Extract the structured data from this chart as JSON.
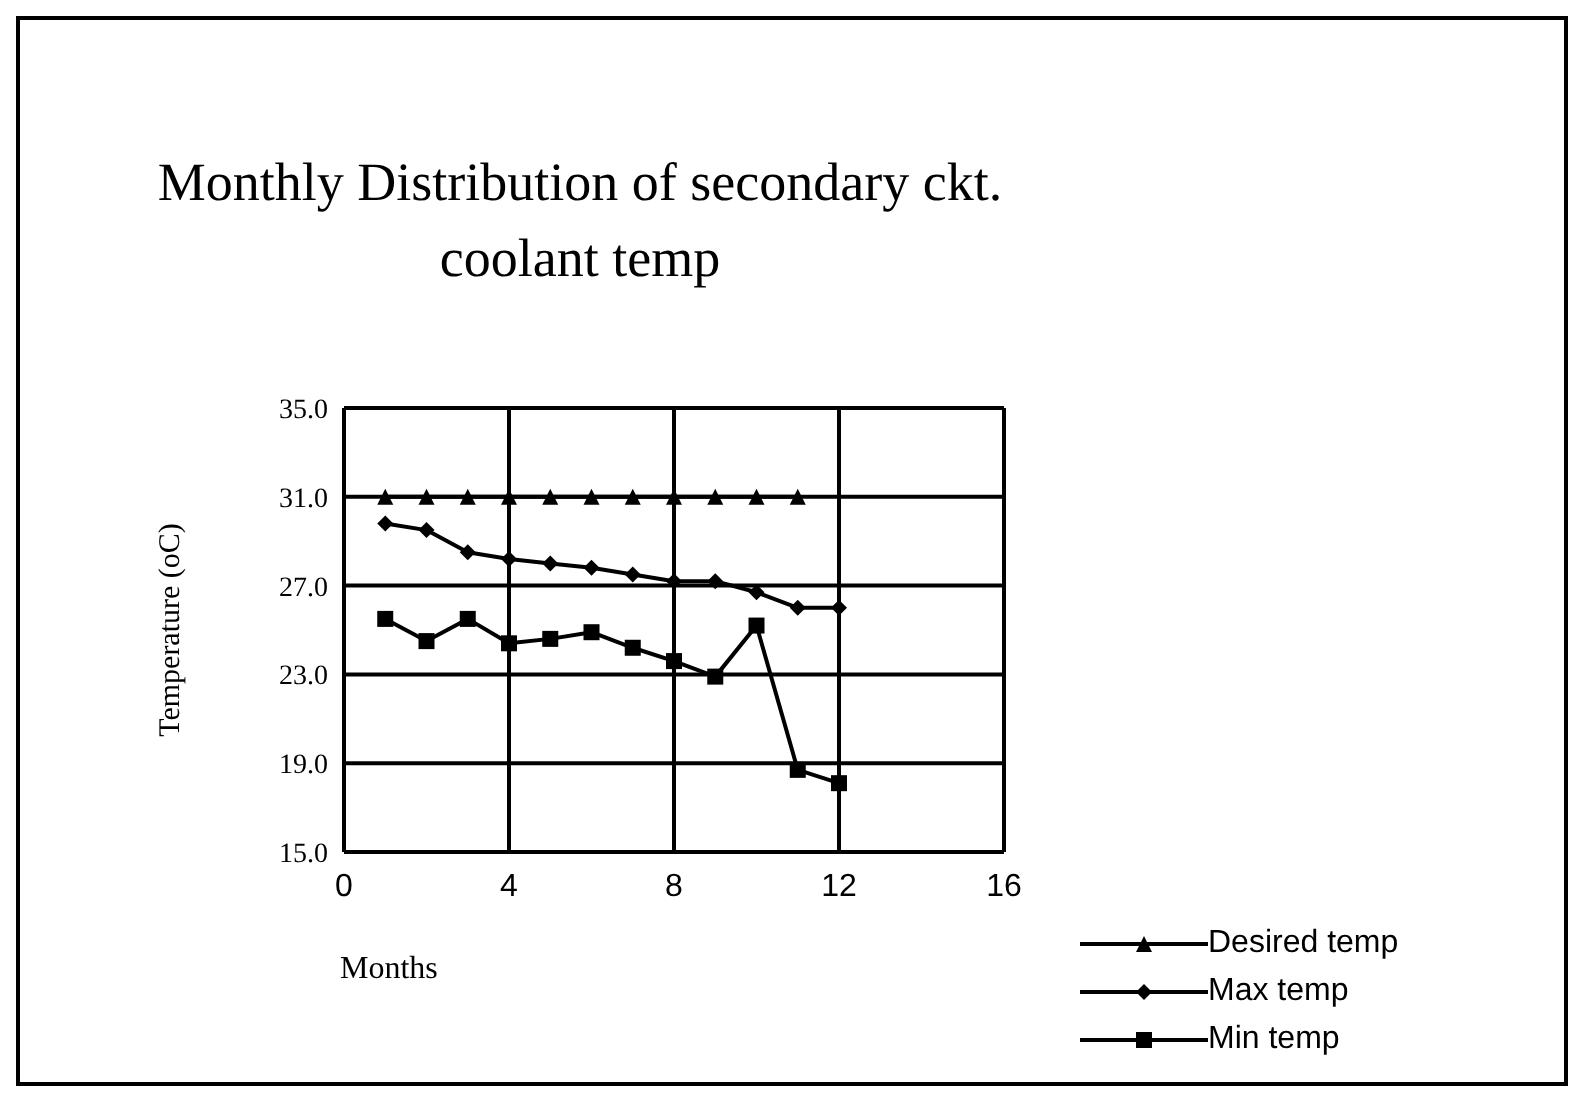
{
  "chart_data": {
    "type": "line",
    "title": "Monthly Distribution of secondary ckt.\ncoolant temp",
    "xlabel": "Months",
    "ylabel": "Temperature (oC)",
    "xlim": [
      0,
      16
    ],
    "xticks": [
      0,
      4,
      8,
      12,
      16
    ],
    "ylim": [
      15,
      35
    ],
    "yticks": [
      {
        "value": 15,
        "label": "15.0"
      },
      {
        "value": 19,
        "label": "19.0"
      },
      {
        "value": 23,
        "label": "23.0"
      },
      {
        "value": 27,
        "label": "27.0"
      },
      {
        "value": 31,
        "label": "31.0"
      },
      {
        "value": 35,
        "label": "35.0"
      }
    ],
    "grid": true,
    "legend": "bottom right",
    "line_style": "solid",
    "series": [
      {
        "name": "Desired temp",
        "color": "#000000",
        "marker": "triangle",
        "x": [
          1,
          2,
          3,
          4,
          5,
          6,
          7,
          8,
          9,
          10,
          11
        ],
        "values": [
          31,
          31,
          31,
          31,
          31,
          31,
          31,
          31,
          31,
          31,
          31
        ]
      },
      {
        "name": "Max temp",
        "color": "#000000",
        "marker": "diamond",
        "x": [
          1,
          2,
          3,
          4,
          5,
          6,
          7,
          8,
          9,
          10,
          11,
          12
        ],
        "values": [
          29.8,
          29.5,
          28.5,
          28.2,
          28.0,
          27.8,
          27.5,
          27.2,
          27.2,
          26.7,
          26.0,
          26.0
        ]
      },
      {
        "name": "Min temp",
        "color": "#000000",
        "marker": "square",
        "x": [
          1,
          2,
          3,
          4,
          5,
          6,
          7,
          8,
          9,
          10,
          11,
          12
        ],
        "values": [
          25.5,
          24.5,
          25.5,
          24.4,
          24.6,
          24.9,
          24.2,
          23.6,
          22.9,
          25.2,
          18.7,
          18.1
        ]
      }
    ]
  }
}
